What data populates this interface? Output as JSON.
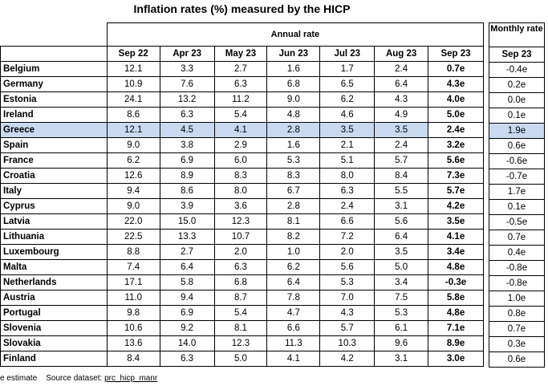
{
  "title": "Inflation rates (%) measured by the HICP",
  "header": {
    "annual_rate": "Annual rate",
    "monthly_rate": "Monthly rate",
    "annual_columns": [
      "Sep 22",
      "Apr 23",
      "May 23",
      "Jun 23",
      "Jul 23",
      "Aug 23",
      "Sep 23"
    ],
    "monthly_column": "Sep 23"
  },
  "rows": [
    {
      "country": "Belgium",
      "values": [
        "12.1",
        "3.3",
        "2.7",
        "1.6",
        "1.7",
        "2.4",
        "0.7e"
      ],
      "monthly": "-0.4e"
    },
    {
      "country": "Germany",
      "values": [
        "10.9",
        "7.6",
        "6.3",
        "6.8",
        "6.5",
        "6.4",
        "4.3e"
      ],
      "monthly": "0.2e"
    },
    {
      "country": "Estonia",
      "values": [
        "24.1",
        "13.2",
        "11.2",
        "9.0",
        "6.2",
        "4.3",
        "4.0e"
      ],
      "monthly": "0.0e"
    },
    {
      "country": "Ireland",
      "values": [
        "8.6",
        "6.3",
        "5.4",
        "4.8",
        "4.6",
        "4.9",
        "5.0e"
      ],
      "monthly": "0.1e"
    },
    {
      "country": "Greece",
      "values": [
        "12.1",
        "4.5",
        "4.1",
        "2.8",
        "3.5",
        "3.5",
        "2.4e"
      ],
      "monthly": "1.9e",
      "highlight": true
    },
    {
      "country": "Spain",
      "values": [
        "9.0",
        "3.8",
        "2.9",
        "1.6",
        "2.1",
        "2.4",
        "3.2e"
      ],
      "monthly": "0.6e"
    },
    {
      "country": "France",
      "values": [
        "6.2",
        "6.9",
        "6.0",
        "5.3",
        "5.1",
        "5.7",
        "5.6e"
      ],
      "monthly": "-0.6e"
    },
    {
      "country": "Croatia",
      "values": [
        "12.6",
        "8.9",
        "8.3",
        "8.3",
        "8.0",
        "8.4",
        "7.3e"
      ],
      "monthly": "-0.7e"
    },
    {
      "country": "Italy",
      "values": [
        "9.4",
        "8.6",
        "8.0",
        "6.7",
        "6.3",
        "5.5",
        "5.7e"
      ],
      "monthly": "1.7e"
    },
    {
      "country": "Cyprus",
      "values": [
        "9.0",
        "3.9",
        "3.6",
        "2.8",
        "2.4",
        "3.1",
        "4.2e"
      ],
      "monthly": "0.1e"
    },
    {
      "country": "Latvia",
      "values": [
        "22.0",
        "15.0",
        "12.3",
        "8.1",
        "6.6",
        "5.6",
        "3.5e"
      ],
      "monthly": "-0.5e"
    },
    {
      "country": "Lithuania",
      "values": [
        "22.5",
        "13.3",
        "10.7",
        "8.2",
        "7.2",
        "6.4",
        "4.1e"
      ],
      "monthly": "0.7e"
    },
    {
      "country": "Luxembourg",
      "values": [
        "8.8",
        "2.7",
        "2.0",
        "1.0",
        "2.0",
        "3.5",
        "3.4e"
      ],
      "monthly": "0.4e"
    },
    {
      "country": "Malta",
      "values": [
        "7.4",
        "6.4",
        "6.3",
        "6.2",
        "5.6",
        "5.0",
        "4.8e"
      ],
      "monthly": "-0.8e"
    },
    {
      "country": "Netherlands",
      "values": [
        "17.1",
        "5.8",
        "6.8",
        "6.4",
        "5.3",
        "3.4",
        "-0.3e"
      ],
      "monthly": "-0.8e"
    },
    {
      "country": "Austria",
      "values": [
        "11.0",
        "9.4",
        "8.7",
        "7.8",
        "7.0",
        "7.5",
        "5.8e"
      ],
      "monthly": "1.0e"
    },
    {
      "country": "Portugal",
      "values": [
        "9.8",
        "6.9",
        "5.4",
        "4.7",
        "4.3",
        "5.3",
        "4.8e"
      ],
      "monthly": "0.8e"
    },
    {
      "country": "Slovenia",
      "values": [
        "10.6",
        "9.2",
        "8.1",
        "6.6",
        "5.7",
        "6.1",
        "7.1e"
      ],
      "monthly": "0.7e"
    },
    {
      "country": "Slovakia",
      "values": [
        "13.6",
        "14.0",
        "12.3",
        "11.3",
        "10.3",
        "9.6",
        "8.9e"
      ],
      "monthly": "0.3e"
    },
    {
      "country": "Finland",
      "values": [
        "8.4",
        "6.3",
        "5.0",
        "4.1",
        "4.2",
        "3.1",
        "3.0e"
      ],
      "monthly": "0.6e"
    }
  ],
  "footer": {
    "note": "e estimate",
    "source_label": "Source dataset:",
    "source_link": "prc_hicp_manr"
  }
}
